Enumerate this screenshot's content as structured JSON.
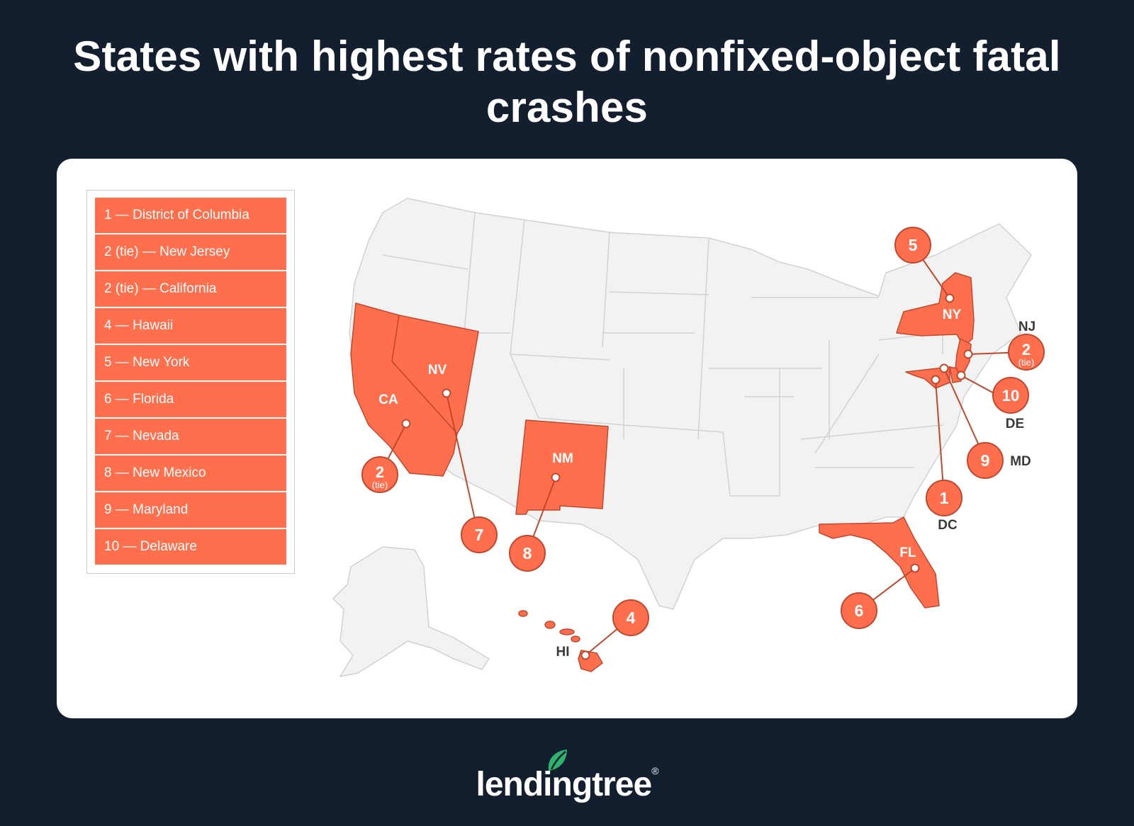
{
  "title": "States with highest rates of nonfixed-object fatal crashes",
  "legend": [
    "1 — District of Columbia",
    "2 (tie) — New Jersey",
    "2 (tie) — California",
    "4 — Hawaii",
    "5 — New York",
    "6 — Florida",
    "7 — Nevada",
    "8 — New Mexico",
    "9 — Maryland",
    "10 — Delaware"
  ],
  "map": {
    "highlight_color": "#ff6f4d",
    "base_color": "#f2f2f2",
    "state_labels": {
      "ca": "CA",
      "nv": "NV",
      "nm": "NM",
      "ny": "NY",
      "fl": "FL",
      "hi": "HI",
      "nj": "NJ",
      "de": "DE",
      "md": "MD",
      "dc": "DC"
    },
    "badges": {
      "dc": "1",
      "nj": "2",
      "nj_sub": "(tie)",
      "ca": "2",
      "ca_sub": "(tie)",
      "hi": "4",
      "ny": "5",
      "fl": "6",
      "nv": "7",
      "nm": "8",
      "md": "9",
      "de": "10"
    }
  },
  "brand": {
    "name": "lendingtree",
    "registered": "®",
    "leaf_color": "#2db36b"
  }
}
